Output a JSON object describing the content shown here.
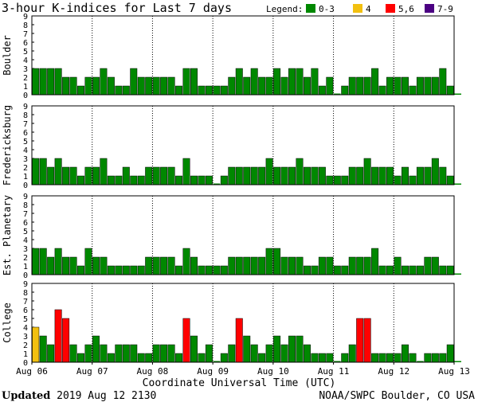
{
  "footer": {
    "updated_label": "Updated",
    "updated_value": "2019 Aug 12 2130",
    "credit": "NOAA/SWPC Boulder, CO USA"
  },
  "chart_data": {
    "type": "bar",
    "title": "3-hour K-indices for Last 7 days",
    "xlabel": "Coordinate Universal Time (UTC)",
    "x_ticks": [
      "Aug 06",
      "Aug 07",
      "Aug 08",
      "Aug 09",
      "Aug 10",
      "Aug 11",
      "Aug 12",
      "Aug 13"
    ],
    "ylim": [
      0,
      9
    ],
    "y_ticks": [
      0,
      1,
      2,
      3,
      4,
      5,
      6,
      7,
      8,
      9
    ],
    "intervals_per_day": 8,
    "legend": {
      "label": "Legend:",
      "entries": [
        {
          "label": "0-3",
          "color": "#008800",
          "min": 0,
          "max": 3
        },
        {
          "label": "4",
          "color": "#f2c010",
          "min": 4,
          "max": 4
        },
        {
          "label": "5,6",
          "color": "#ff0000",
          "min": 5,
          "max": 6
        },
        {
          "label": "7-9",
          "color": "#4b0082",
          "min": 7,
          "max": 9
        }
      ]
    },
    "panels": [
      {
        "name": "Boulder",
        "values": [
          3,
          3,
          3,
          3,
          2,
          2,
          1,
          2,
          2,
          3,
          2,
          1,
          1,
          3,
          2,
          2,
          2,
          2,
          2,
          1,
          3,
          3,
          1,
          1,
          1,
          1,
          2,
          3,
          2,
          3,
          2,
          2,
          3,
          2,
          3,
          3,
          2,
          3,
          1,
          2,
          0,
          1,
          2,
          2,
          2,
          3,
          1,
          2,
          2,
          2,
          1,
          2,
          2,
          2,
          3,
          1,
          0
        ]
      },
      {
        "name": "Fredericksburg",
        "values": [
          3,
          3,
          2,
          3,
          2,
          2,
          1,
          2,
          2,
          3,
          1,
          1,
          2,
          1,
          1,
          2,
          2,
          2,
          2,
          1,
          3,
          1,
          1,
          1,
          0,
          1,
          2,
          2,
          2,
          2,
          2,
          3,
          2,
          2,
          2,
          3,
          2,
          2,
          2,
          1,
          1,
          1,
          2,
          2,
          3,
          2,
          2,
          2,
          1,
          2,
          1,
          2,
          2,
          3,
          2,
          1,
          0
        ]
      },
      {
        "name": "Est. Planetary",
        "values": [
          3,
          3,
          2,
          3,
          2,
          2,
          1,
          3,
          2,
          2,
          1,
          1,
          1,
          1,
          1,
          2,
          2,
          2,
          2,
          1,
          3,
          2,
          1,
          1,
          1,
          1,
          2,
          2,
          2,
          2,
          2,
          3,
          3,
          2,
          2,
          2,
          1,
          1,
          2,
          2,
          1,
          1,
          2,
          2,
          2,
          3,
          1,
          1,
          2,
          1,
          1,
          1,
          2,
          2,
          1,
          1,
          0
        ]
      },
      {
        "name": "College",
        "values": [
          4,
          3,
          2,
          6,
          5,
          2,
          1,
          2,
          3,
          2,
          1,
          2,
          2,
          2,
          1,
          1,
          2,
          2,
          2,
          1,
          5,
          3,
          1,
          2,
          0,
          1,
          2,
          5,
          3,
          2,
          1,
          2,
          3,
          2,
          3,
          3,
          2,
          1,
          1,
          1,
          0,
          1,
          2,
          5,
          5,
          1,
          1,
          1,
          1,
          2,
          1,
          0,
          1,
          1,
          1,
          2,
          0
        ]
      }
    ]
  }
}
